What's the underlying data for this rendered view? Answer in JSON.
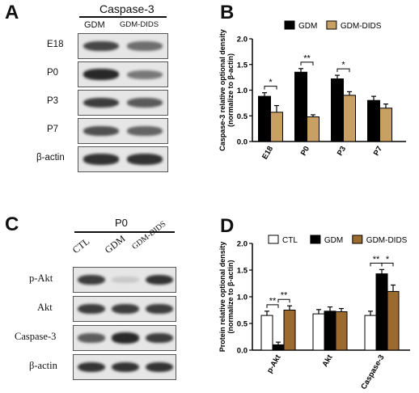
{
  "panels": {
    "a": {
      "letter": "A",
      "header": "Caspase-3",
      "columns": [
        "GDM",
        "GDM-DIDS"
      ],
      "rows": [
        {
          "label": "E18",
          "bands": [
            0.75,
            0.55
          ]
        },
        {
          "label": "P0",
          "bands": [
            0.9,
            0.5
          ]
        },
        {
          "label": "P3",
          "bands": [
            0.8,
            0.65
          ]
        },
        {
          "label": "P7",
          "bands": [
            0.7,
            0.6
          ]
        },
        {
          "label": "β-actin",
          "bands": [
            0.85,
            0.85
          ]
        }
      ]
    },
    "c": {
      "letter": "C",
      "header": "P0",
      "columns": [
        "CTL",
        "GDM",
        "GDM-DIDS"
      ],
      "rows": [
        {
          "label": "p-Akt",
          "bands": [
            0.8,
            0.12,
            0.85
          ]
        },
        {
          "label": "Akt",
          "bands": [
            0.8,
            0.8,
            0.8
          ]
        },
        {
          "label": "Caspase-3",
          "bands": [
            0.65,
            0.9,
            0.8
          ]
        },
        {
          "label": "β-actin",
          "bands": [
            0.85,
            0.85,
            0.85
          ]
        }
      ]
    }
  },
  "chart_data": [
    {
      "panel": "B",
      "type": "bar",
      "ylabel": "Caspase-3 relative optional density\n(normalize to β-actin)",
      "categories": [
        "E18",
        "P0",
        "P3",
        "P7"
      ],
      "ylim": [
        0,
        2.0
      ],
      "yticks": [
        "0.0",
        "0.5",
        "1.0",
        "1.5",
        "2.0"
      ],
      "series": [
        {
          "name": "GDM",
          "color": "#000000",
          "values": [
            0.88,
            1.35,
            1.22,
            0.8
          ],
          "errors": [
            0.07,
            0.07,
            0.07,
            0.08
          ]
        },
        {
          "name": "GDM-DIDS",
          "color": "#c8a063",
          "values": [
            0.57,
            0.48,
            0.9,
            0.65
          ],
          "errors": [
            0.13,
            0.04,
            0.07,
            0.08
          ]
        }
      ],
      "significance": [
        {
          "category": "E18",
          "label": "*"
        },
        {
          "category": "P0",
          "label": "**"
        },
        {
          "category": "P3",
          "label": "*"
        }
      ],
      "legend": "top"
    },
    {
      "panel": "D",
      "type": "bar",
      "ylabel": "Protein relative optional density\n(normalize to β-actin)",
      "categories": [
        "p-Akt",
        "Akt",
        "Caspase-3"
      ],
      "ylim": [
        0,
        2.0
      ],
      "yticks": [
        "0.0",
        "0.5",
        "1.0",
        "1.5",
        "2.0"
      ],
      "series": [
        {
          "name": "CTL",
          "color": "#ffffff",
          "values": [
            0.65,
            0.68,
            0.65
          ],
          "errors": [
            0.08,
            0.08,
            0.08
          ]
        },
        {
          "name": "GDM",
          "color": "#000000",
          "values": [
            0.1,
            0.73,
            1.43
          ],
          "errors": [
            0.05,
            0.08,
            0.08
          ]
        },
        {
          "name": "GDM-DIDS",
          "color": "#9b6a2e",
          "values": [
            0.75,
            0.72,
            1.1
          ],
          "errors": [
            0.08,
            0.06,
            0.12
          ]
        }
      ],
      "significance": [
        {
          "category": "p-Akt",
          "pair": [
            0,
            1
          ],
          "label": "**"
        },
        {
          "category": "p-Akt",
          "pair": [
            1,
            2
          ],
          "label": "**"
        },
        {
          "category": "Caspase-3",
          "pair": [
            0,
            1
          ],
          "label": "**"
        },
        {
          "category": "Caspase-3",
          "pair": [
            1,
            2
          ],
          "label": "*"
        }
      ],
      "legend": "top"
    }
  ]
}
